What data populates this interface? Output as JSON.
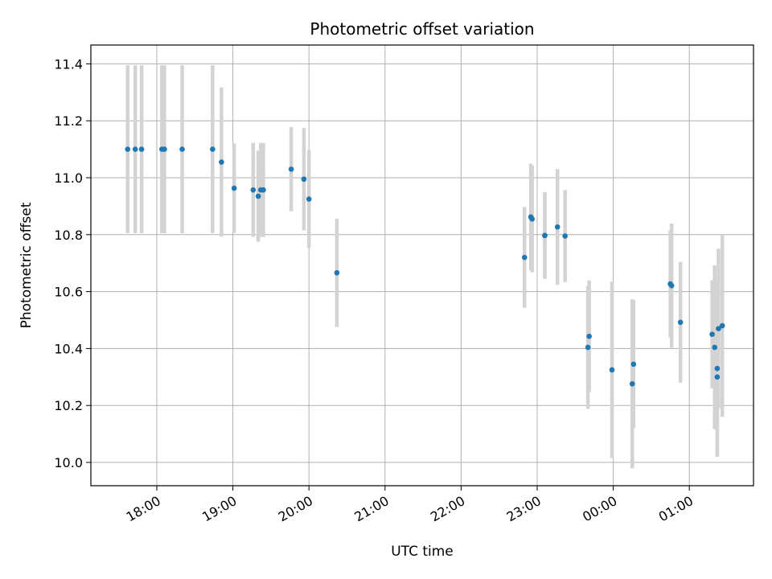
{
  "chart_data": {
    "type": "scatter",
    "title": "Photometric offset variation",
    "xlabel": "UTC time",
    "ylabel": "Photometric offset",
    "x_ticks": [
      "18:00",
      "19:00",
      "20:00",
      "21:00",
      "22:00",
      "23:00",
      "00:00",
      "01:00"
    ],
    "y_ticks": [
      "10.0",
      "10.2",
      "10.4",
      "10.6",
      "10.8",
      "11.0",
      "11.2",
      "11.4"
    ],
    "grid": true,
    "colors": {
      "point": "#1f77b4",
      "errorbar": "#d3d3d3",
      "grid": "#b0b0b0"
    },
    "series": [
      {
        "x": [
          "17:37",
          "17:43",
          "17:48",
          "18:04",
          "18:06",
          "18:20",
          "18:44",
          "18:51",
          "19:01",
          "19:16",
          "19:20",
          "19:22",
          "19:24",
          "19:46",
          "19:56",
          "20:00",
          "20:22",
          "22:50",
          "22:55",
          "22:56",
          "23:06",
          "23:06",
          "23:16",
          "23:22",
          "23:40",
          "23:41",
          "23:59",
          "00:15",
          "00:16",
          "00:45",
          "00:46",
          "00:53",
          "01:18",
          "01:20",
          "01:22",
          "01:22",
          "01:23",
          "01:26"
        ],
        "y": [
          11.1,
          11.1,
          11.1,
          11.1,
          11.1,
          11.1,
          11.1,
          11.055,
          10.963,
          10.957,
          10.935,
          10.957,
          10.957,
          11.03,
          10.995,
          10.925,
          10.666,
          10.72,
          10.862,
          10.855,
          10.797,
          10.797,
          10.827,
          10.795,
          10.404,
          10.443,
          10.325,
          10.276,
          10.345,
          10.627,
          10.621,
          10.492,
          10.45,
          10.404,
          10.33,
          10.3,
          10.47,
          10.48
        ],
        "err": [
          0.295,
          0.295,
          0.295,
          0.295,
          0.295,
          0.295,
          0.295,
          0.262,
          0.157,
          0.165,
          0.16,
          0.165,
          0.165,
          0.148,
          0.18,
          0.172,
          0.19,
          0.177,
          0.187,
          0.187,
          0.152,
          0.152,
          0.203,
          0.162,
          0.216,
          0.196,
          0.31,
          0.297,
          0.225,
          0.187,
          0.218,
          0.212,
          0.19,
          0.288,
          0.31,
          0.28,
          0.28,
          0.32
        ]
      }
    ]
  }
}
